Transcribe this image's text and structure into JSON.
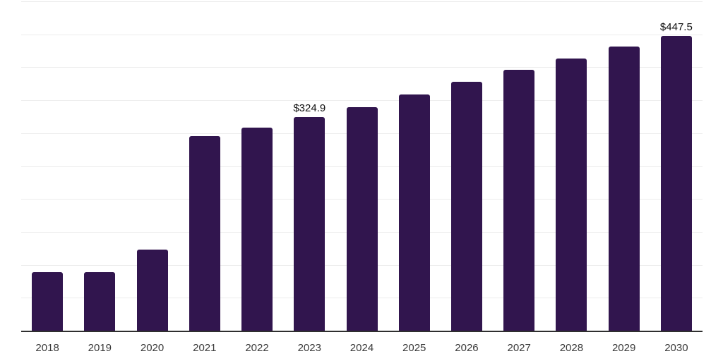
{
  "chart_data": {
    "type": "bar",
    "title": "",
    "xlabel": "",
    "ylabel": "",
    "categories": [
      "2018",
      "2019",
      "2020",
      "2021",
      "2022",
      "2023",
      "2024",
      "2025",
      "2026",
      "2027",
      "2028",
      "2029",
      "2030"
    ],
    "values": [
      88.9,
      88.5,
      123.1,
      295.5,
      308.4,
      324.9,
      339.9,
      358.6,
      377.9,
      396.1,
      413.3,
      431.4,
      447.5
    ],
    "data_labels": [
      {
        "category": "2023",
        "text": "$324.9"
      },
      {
        "category": "2030",
        "text": "$447.5"
      }
    ],
    "ylim": [
      0,
      500
    ],
    "gridline_step": 50,
    "grid": "horizontal",
    "legend_position": "none",
    "bar_color": "#31154e",
    "gridline_color": "#ededed",
    "axis_line_color": "#2f2f2f",
    "axis_label_color": "#3a3a3a",
    "data_label_color": "#111111"
  }
}
